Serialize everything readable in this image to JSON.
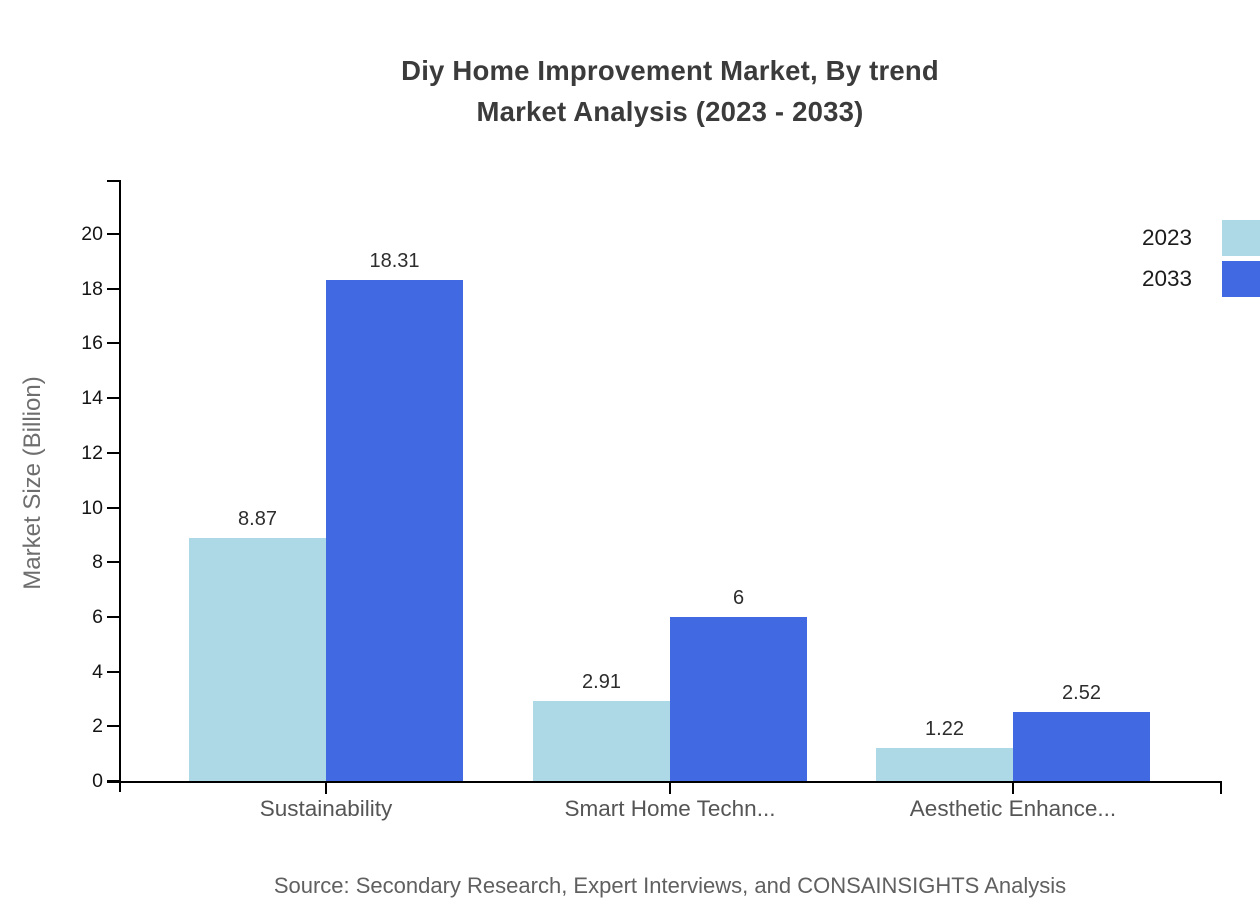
{
  "title": {
    "line1": "Diy Home Improvement Market, By trend",
    "line2": "Market Analysis (2023 - 2033)"
  },
  "source": "Source: Secondary Research, Expert Interviews, and CONSAINSIGHTS Analysis",
  "chart_data": {
    "type": "bar",
    "categories": [
      "Sustainability",
      "Smart Home Techn...",
      "Aesthetic Enhance..."
    ],
    "series": [
      {
        "name": "2023",
        "color": "#ADD8E6",
        "values": [
          8.87,
          2.91,
          1.22
        ]
      },
      {
        "name": "2033",
        "color": "#4169E1",
        "values": [
          18.31,
          6,
          2.52
        ]
      }
    ],
    "data_labels": [
      [
        "8.87",
        "2.91",
        "1.22"
      ],
      [
        "18.31",
        "6",
        "2.52"
      ]
    ],
    "title": "Diy Home Improvement Market, By trend Market Analysis (2023 - 2033)",
    "xlabel": "",
    "ylabel": "Market Size (Billion)",
    "ylim": [
      0,
      20
    ],
    "ytick_step": 2,
    "grid": false,
    "legend_position": "top-right",
    "axis_color": "#000000"
  }
}
